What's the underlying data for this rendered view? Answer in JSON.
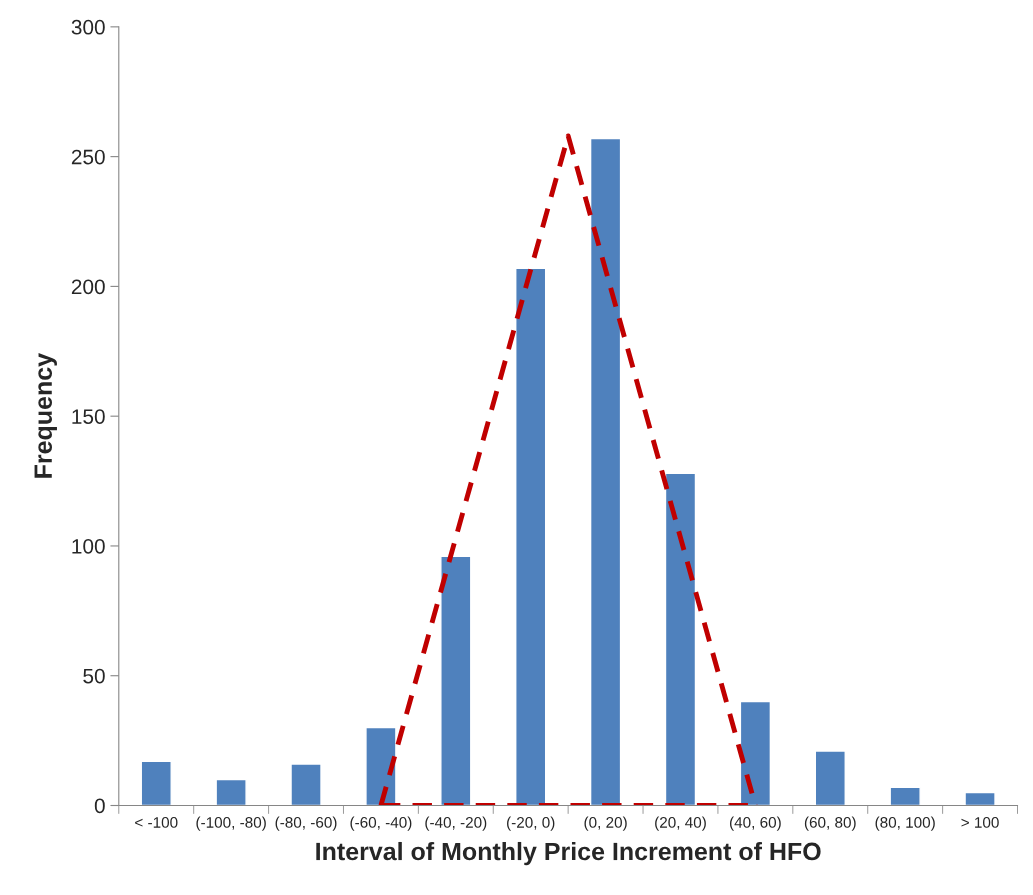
{
  "chart_data": {
    "type": "bar",
    "xlabel": "Interval of Monthly Price Increment of HFO",
    "ylabel": "Frequency",
    "categories": [
      "< -100",
      null,
      "(-100, -80)",
      null,
      "(-80, -60)",
      null,
      "(-60, -40)",
      null,
      "(-40, -20)",
      null,
      "(-20, 0)",
      null,
      "(0, 20)",
      null,
      "(20, 40)",
      null,
      "(40, 60)",
      null,
      "(60, 80)",
      null,
      "(80, 100)",
      null,
      "> 100"
    ],
    "series": [
      {
        "color": "#4f81bd",
        "values": [
          17,
          null,
          10,
          null,
          16,
          null,
          30,
          null,
          96,
          null,
          207,
          null,
          257,
          null,
          128,
          null,
          40,
          null,
          21,
          null,
          7,
          null,
          5
        ]
      },
      {
        "type": "line",
        "color": "#c00000",
        "line_style": "dashed",
        "marker": "none",
        "values": [
          null,
          null,
          null,
          null,
          null,
          null,
          0,
          null,
          null,
          null,
          null,
          258,
          null,
          null,
          null,
          null,
          0,
          null,
          null,
          null,
          null,
          null,
          null
        ]
      },
      {
        "type": "line",
        "color": "#c00000",
        "line_style": "dashed",
        "marker": "none",
        "values": [
          null,
          null,
          null,
          null,
          null,
          null,
          0,
          null,
          null,
          null,
          null,
          null,
          null,
          null,
          null,
          null,
          0,
          null,
          null,
          null,
          null,
          null,
          null
        ]
      }
    ],
    "ylim": [
      0,
      300
    ],
    "yticks": [
      0,
      50,
      100,
      150,
      200,
      250,
      300
    ],
    "grid": false,
    "legend": false
  }
}
